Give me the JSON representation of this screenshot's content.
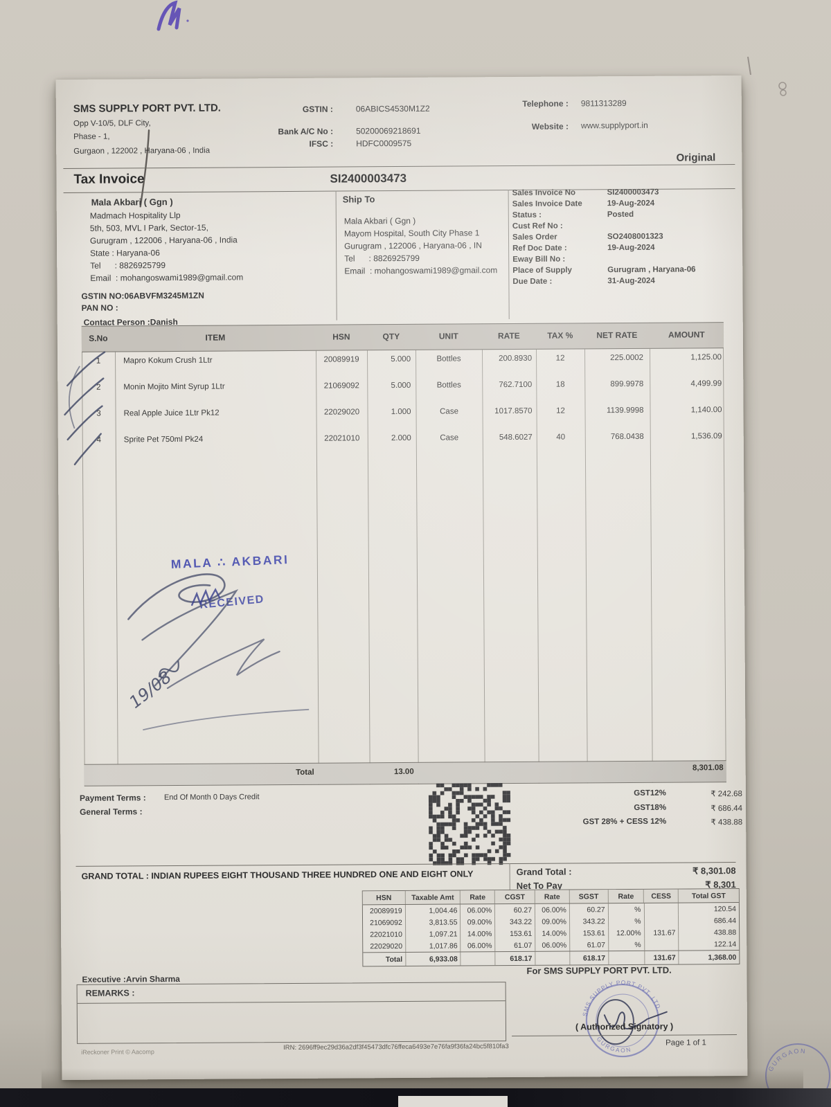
{
  "header": {
    "company_name": "SMS SUPPLY PORT PVT. LTD.",
    "address_line1": "Opp  V-10/5, DLF City,",
    "address_line2": "Phase - 1,",
    "address_line3": "Gurgaon , 122002 , Haryana-06 , India",
    "gstin_label": "GSTIN :",
    "gstin_value": "06ABICS4530M1Z2",
    "bank_label": "Bank A/C No :",
    "bank_value": "50200069218691",
    "ifsc_label": "IFSC :",
    "ifsc_value": "HDFC0009575",
    "phone_label": "Telephone :",
    "phone_value": "9811313289",
    "website_label": "Website :",
    "website_value": "www.supplyport.in",
    "copy_type": "Original"
  },
  "title": {
    "label": "Tax Invoice",
    "number": "SI2400003473"
  },
  "bill_to": {
    "name": "Mala Akbari ( Ggn )",
    "line1": "Madmach Hospitality Llp",
    "line2": "5th, 503, MVL I Park, Sector-15,",
    "line3": "Gurugram , 122006 , Haryana-06 , India",
    "line4": "State : Haryana-06",
    "line5": "Tel      : 8826925799",
    "line6": "Email  : mohangoswami1989@gmail.com",
    "gstin": "GSTIN NO:06ABVFM3245M1ZN",
    "pan": "PAN NO  :",
    "contact": "Contact Person :Danish"
  },
  "ship_to": {
    "label": "Ship To",
    "line1": "Mala Akbari ( Ggn )",
    "line2": "Mayom Hospital, South City Phase 1",
    "line3": "Gurugram , 122006 , Haryana-06 , IN",
    "line4": "Tel      : 8826925799",
    "line5": "Email  : mohangoswami1989@gmail.com"
  },
  "invoice_details": [
    [
      "Sales Invoice No",
      "SI2400003473"
    ],
    [
      "Sales Invoice Date",
      "19-Aug-2024"
    ],
    [
      "Status :",
      "Posted"
    ],
    [
      "Cust Ref No :",
      ""
    ],
    [
      "Sales Order",
      "SO2408001323"
    ],
    [
      "Ref Doc Date :",
      "19-Aug-2024"
    ],
    [
      "Eway Bill No :",
      ""
    ],
    [
      "Place of Supply",
      "Gurugram , Haryana-06"
    ],
    [
      "Due Date :",
      "31-Aug-2024"
    ]
  ],
  "items_table": {
    "headers": [
      "S.No",
      "ITEM",
      "HSN",
      "QTY",
      "UNIT",
      "RATE",
      "TAX %",
      "NET RATE",
      "AMOUNT"
    ],
    "rows": [
      [
        "1",
        "Mapro Kokum Crush 1Ltr",
        "20089919",
        "5.000",
        "Bottles",
        "200.8930",
        "12",
        "225.0002",
        "1,125.00"
      ],
      [
        "2",
        "Monin Mojito Mint Syrup 1Ltr",
        "21069092",
        "5.000",
        "Bottles",
        "762.7100",
        "18",
        "899.9978",
        "4,499.99"
      ],
      [
        "3",
        "Real Apple Juice 1Ltr Pk12",
        "22029020",
        "1.000",
        "Case",
        "1017.8570",
        "12",
        "1139.9998",
        "1,140.00"
      ],
      [
        "4",
        "Sprite Pet 750ml Pk24",
        "22021010",
        "2.000",
        "Case",
        "548.6027",
        "40",
        "768.0438",
        "1,536.09"
      ]
    ],
    "total_label": "Total",
    "total_qty": "13.00",
    "total_amount": "8,301.08"
  },
  "ink": {
    "customer_stamp": "MALA ∴ AKBARI",
    "received_stamp": "RECEIVED",
    "handwritten_date": "19/08"
  },
  "terms": {
    "payment_label": "Payment Terms :",
    "payment_value": "End Of Month 0 Days Credit",
    "general_label": "General Terms :"
  },
  "gst_summary": [
    [
      "GST12%",
      "₹ 242.68"
    ],
    [
      "GST18%",
      "₹ 686.44"
    ],
    [
      "GST 28% + CESS 12%",
      "₹ 438.88"
    ]
  ],
  "grand_total": {
    "words": "GRAND TOTAL :  INDIAN RUPEES  EIGHT THOUSAND THREE HUNDRED ONE  AND EIGHT ONLY",
    "label": "Grand Total :",
    "value": "₹ 8,301.08",
    "net_label": "Net To Pay",
    "net_value": "₹ 8,301"
  },
  "tax_table": {
    "headers": [
      "HSN",
      "Taxable Amt",
      "Rate",
      "CGST",
      "Rate",
      "SGST",
      "Rate",
      "CESS",
      "Total GST"
    ],
    "rows": [
      [
        "20089919",
        "1,004.46",
        "06.00%",
        "60.27",
        "06.00%",
        "60.27",
        "%",
        "",
        "120.54"
      ],
      [
        "21069092",
        "3,813.55",
        "09.00%",
        "343.22",
        "09.00%",
        "343.22",
        "%",
        "",
        "686.44"
      ],
      [
        "22021010",
        "1,097.21",
        "14.00%",
        "153.61",
        "14.00%",
        "153.61",
        "12.00%",
        "131.67",
        "438.88"
      ],
      [
        "22029020",
        "1,017.86",
        "06.00%",
        "61.07",
        "06.00%",
        "61.07",
        "%",
        "",
        "122.14"
      ],
      [
        "Total",
        "6,933.08",
        "",
        "618.17",
        "",
        "618.17",
        "",
        "131.67",
        "1,368.00"
      ]
    ]
  },
  "footer": {
    "executive": "Executive :Arvin Sharma",
    "remarks_label": "REMARKS :",
    "for_company": "For  SMS SUPPLY PORT PVT. LTD.",
    "authorized": "( Authorized Signatory )",
    "page": "Page 1 of 1",
    "print_credit": "iReckoner Print © Aacomp",
    "irn": "IRN: 2696ff9ec29d36a2df3f45473dfc76ffeca6493e7e76fa9f36fa24bc5f810fa3",
    "seller_stamp_company": "SMS SUPPLY PORT PVT. LTD.",
    "seller_stamp_city": "GURGAON"
  },
  "colors": {
    "stamp_blue": "#3f46ad",
    "pen_dark": "#3a4160",
    "purple_ink": "#5a48b5"
  }
}
